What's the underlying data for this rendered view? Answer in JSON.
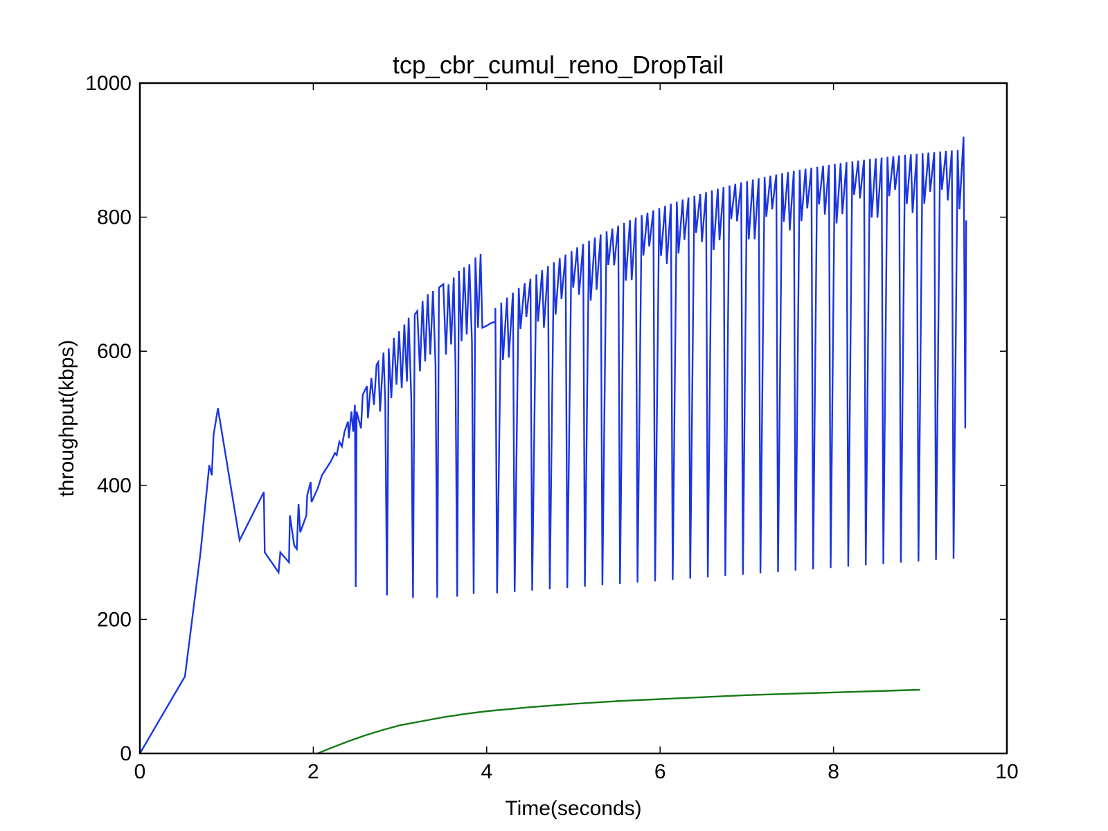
{
  "chart_data": {
    "type": "line",
    "title": "tcp_cbr_cumul_reno_DropTail",
    "xlabel": "Time(seconds)",
    "ylabel": "throughput(kbps)",
    "xlim": [
      0,
      10
    ],
    "ylim": [
      0,
      1000
    ],
    "xticks": [
      "0",
      "2",
      "4",
      "6",
      "8",
      "10"
    ],
    "yticks": [
      "0",
      "200",
      "400",
      "600",
      "800",
      "1000"
    ],
    "grid": false,
    "legend": "none",
    "series": [
      {
        "color": "#1a35e0",
        "style": "sawtooth",
        "points": [
          [
            0,
            0
          ],
          [
            0.52,
            115
          ],
          [
            0.7,
            300
          ],
          [
            0.8,
            430
          ],
          [
            0.83,
            415
          ],
          [
            0.85,
            475
          ],
          [
            0.9,
            515
          ],
          [
            1.15,
            318
          ],
          [
            1.43,
            390
          ],
          [
            1.44,
            300
          ],
          [
            1.6,
            270
          ],
          [
            1.62,
            300
          ],
          [
            1.72,
            285
          ],
          [
            1.73,
            355
          ],
          [
            1.78,
            310
          ],
          [
            1.81,
            305
          ],
          [
            1.83,
            372
          ],
          [
            1.85,
            330
          ],
          [
            1.92,
            355
          ],
          [
            1.93,
            385
          ],
          [
            1.97,
            405
          ],
          [
            1.98,
            375
          ],
          [
            2.05,
            395
          ],
          [
            2.1,
            415
          ],
          [
            2.2,
            435
          ],
          [
            2.25,
            448
          ],
          [
            2.27,
            445
          ],
          [
            2.3,
            465
          ],
          [
            2.33,
            458
          ],
          [
            2.36,
            480
          ],
          [
            2.4,
            495
          ],
          [
            2.41,
            470
          ],
          [
            2.44,
            510
          ],
          [
            2.46,
            480
          ],
          [
            2.48,
            520
          ],
          [
            2.49,
            248
          ],
          [
            2.5,
            510
          ],
          [
            2.55,
            485
          ],
          [
            2.57,
            535
          ],
          [
            2.62,
            548
          ],
          [
            2.63,
            500
          ],
          [
            2.67,
            560
          ],
          [
            2.7,
            520
          ],
          [
            2.73,
            580
          ],
          [
            2.75,
            584
          ],
          [
            2.77,
            510
          ],
          [
            2.81,
            598
          ],
          [
            2.83,
            525
          ],
          [
            2.85,
            236
          ],
          [
            2.87,
            604
          ],
          [
            2.9,
            530
          ],
          [
            2.93,
            620
          ],
          [
            2.96,
            550
          ],
          [
            2.99,
            630
          ],
          [
            3.02,
            545
          ],
          [
            3.05,
            640
          ],
          [
            3.08,
            555
          ],
          [
            3.1,
            650
          ],
          [
            3.13,
            530
          ],
          [
            3.15,
            232
          ],
          [
            3.17,
            655
          ],
          [
            3.2,
            660
          ],
          [
            3.23,
            570
          ],
          [
            3.26,
            675
          ],
          [
            3.29,
            585
          ],
          [
            3.32,
            685
          ],
          [
            3.35,
            595
          ],
          [
            3.38,
            690
          ],
          [
            3.41,
            580
          ],
          [
            3.43,
            232
          ],
          [
            3.45,
            695
          ],
          [
            3.5,
            700
          ],
          [
            3.53,
            595
          ],
          [
            3.56,
            700
          ],
          [
            3.59,
            610
          ],
          [
            3.62,
            710
          ],
          [
            3.64,
            580
          ],
          [
            3.66,
            234
          ],
          [
            3.68,
            720
          ],
          [
            3.71,
            615
          ],
          [
            3.74,
            725
          ],
          [
            3.77,
            625
          ],
          [
            3.8,
            730
          ],
          [
            3.83,
            615
          ],
          [
            3.85,
            238
          ],
          [
            3.87,
            740
          ],
          [
            3.9,
            635
          ],
          [
            3.93,
            745
          ],
          [
            3.95,
            635
          ]
        ]
      },
      {
        "color": "#157a15",
        "style": "smooth",
        "x": [
          2.05,
          2.2,
          2.4,
          2.6,
          2.8,
          3.0,
          3.25,
          3.5,
          3.75,
          4.0,
          4.5,
          5.0,
          5.5,
          6.0,
          6.5,
          7.0,
          7.5,
          8.0,
          8.5,
          9.0
        ],
        "y": [
          0,
          8,
          18,
          27,
          35,
          42,
          48,
          54,
          59,
          63,
          69,
          74,
          78,
          81,
          84,
          87,
          89,
          91,
          93,
          95
        ]
      }
    ]
  }
}
